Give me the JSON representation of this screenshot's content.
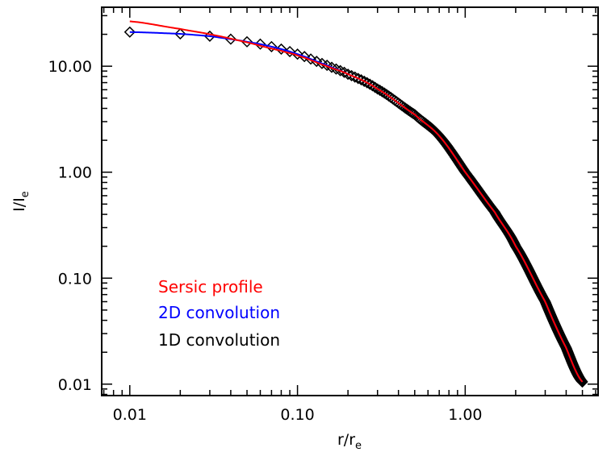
{
  "chart_data": {
    "type": "line",
    "title": "",
    "x_scale": "log",
    "y_scale": "log",
    "xlim": [
      0.0068,
      6.2
    ],
    "ylim": [
      0.0078,
      36.0
    ],
    "xlabel": {
      "main": "r/r",
      "sub": "e"
    },
    "ylabel": {
      "main": "I/I",
      "sub": "e"
    },
    "x_ticks": [
      {
        "value": 0.01,
        "label": "0.01"
      },
      {
        "value": 0.1,
        "label": "0.10"
      },
      {
        "value": 1,
        "label": "1.00"
      }
    ],
    "y_ticks": [
      {
        "value": 0.01,
        "label": "0.01"
      },
      {
        "value": 0.1,
        "label": "0.10"
      },
      {
        "value": 1,
        "label": "1.00"
      },
      {
        "value": 10,
        "label": "10.00"
      }
    ],
    "grid": false,
    "legend": {
      "placement": "lower-left",
      "entries": [
        {
          "label": "Sersic profile",
          "color": "#ff0000"
        },
        {
          "label": "2D convolution",
          "color": "#0000ff"
        },
        {
          "label": "1D convolution",
          "color": "#000000"
        }
      ]
    },
    "series": [
      {
        "name": "Sersic profile",
        "color": "#ff0000",
        "style": "line",
        "x": [
          0.01,
          0.02,
          0.03,
          0.05,
          0.08,
          0.1,
          0.15,
          0.2,
          0.3,
          0.5,
          0.7,
          1.0,
          1.5,
          2.0,
          3.0,
          4.0,
          5.0
        ],
        "y": [
          26.5,
          22.5,
          20.0,
          16.8,
          14.0,
          12.6,
          10.0,
          8.4,
          6.1,
          3.5,
          2.2,
          1.0,
          0.42,
          0.2,
          0.06,
          0.022,
          0.0105
        ]
      },
      {
        "name": "2D convolution",
        "color": "#0000ff",
        "style": "line",
        "x": [
          0.01,
          0.02,
          0.03,
          0.04,
          0.05,
          0.07,
          0.1,
          0.15,
          0.2,
          0.3,
          0.5,
          0.7,
          1.0,
          1.5,
          2.0,
          3.0,
          4.0,
          5.0
        ],
        "y": [
          21.0,
          20.2,
          19.2,
          18.0,
          17.0,
          15.3,
          13.0,
          10.2,
          8.4,
          6.1,
          3.5,
          2.2,
          1.0,
          0.42,
          0.2,
          0.06,
          0.022,
          0.0105
        ]
      },
      {
        "name": "1D convolution",
        "color": "#000000",
        "style": "diamonds",
        "x_range": [
          0.01,
          5.0
        ],
        "x_step": 0.01,
        "x_values_note_free": true,
        "y_at": {
          "x": [
            0.01,
            0.02,
            0.03,
            0.04,
            0.05,
            0.07,
            0.1,
            0.15,
            0.2,
            0.3,
            0.5,
            0.7,
            1.0,
            1.5,
            2.0,
            3.0,
            4.0,
            5.0
          ],
          "y": [
            21.0,
            20.2,
            19.2,
            18.0,
            17.0,
            15.3,
            13.0,
            10.2,
            8.4,
            6.1,
            3.5,
            2.2,
            1.0,
            0.42,
            0.2,
            0.06,
            0.022,
            0.0105
          ]
        }
      }
    ]
  }
}
